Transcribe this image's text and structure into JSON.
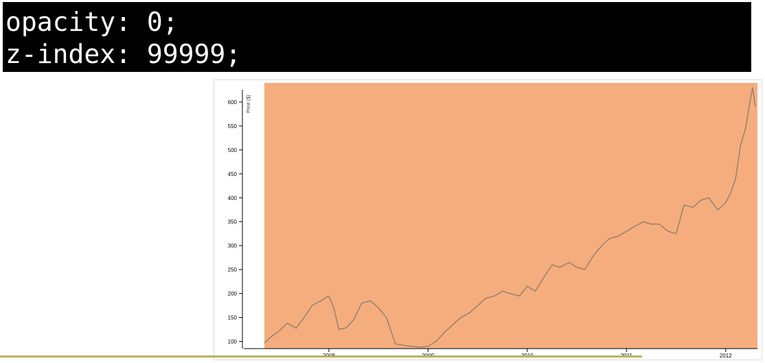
{
  "overlay": {
    "line1": "opacity: 0;",
    "line2": "z-index: 99999;"
  },
  "colors": {
    "banner_bg": "#000000",
    "banner_text": "#ffffff",
    "plot_bg": "#f5ad7e",
    "line": "#8a7a6a"
  },
  "chart_data": {
    "type": "line",
    "title": "",
    "xlabel": "",
    "ylabel": "Price ($)",
    "xlim": [
      2007.35,
      2012.32
    ],
    "ylim": [
      85,
      640
    ],
    "x_ticks": [
      "2008",
      "2009",
      "2010",
      "2011",
      "2012"
    ],
    "y_ticks": [
      100,
      150,
      200,
      250,
      300,
      350,
      400,
      450,
      500,
      550,
      600
    ],
    "grid": false,
    "series": [
      {
        "x": [
          2007.35,
          2007.42,
          2007.5,
          2007.58,
          2007.67,
          2007.75,
          2007.83,
          2007.92,
          2008.0,
          2008.05,
          2008.1,
          2008.17,
          2008.25,
          2008.33,
          2008.42,
          2008.5,
          2008.58,
          2008.67,
          2008.75,
          2008.83,
          2008.92,
          2009.0,
          2009.08,
          2009.17,
          2009.25,
          2009.33,
          2009.42,
          2009.5,
          2009.58,
          2009.67,
          2009.75,
          2009.83,
          2009.92,
          2010.0,
          2010.08,
          2010.17,
          2010.25,
          2010.33,
          2010.42,
          2010.5,
          2010.58,
          2010.67,
          2010.75,
          2010.83,
          2010.92,
          2011.0,
          2011.08,
          2011.17,
          2011.25,
          2011.33,
          2011.42,
          2011.5,
          2011.58,
          2011.67,
          2011.75,
          2011.83,
          2011.92,
          2012.0,
          2012.05,
          2012.1,
          2012.15,
          2012.2,
          2012.24,
          2012.27,
          2012.3
        ],
        "y": [
          97,
          110,
          122,
          138,
          128,
          150,
          175,
          185,
          195,
          170,
          125,
          128,
          145,
          180,
          185,
          170,
          150,
          95,
          92,
          90,
          88,
          90,
          100,
          120,
          135,
          150,
          160,
          175,
          190,
          195,
          205,
          200,
          195,
          215,
          205,
          235,
          260,
          255,
          265,
          255,
          250,
          280,
          300,
          315,
          320,
          330,
          340,
          350,
          345,
          345,
          330,
          325,
          385,
          380,
          395,
          400,
          375,
          390,
          410,
          440,
          510,
          545,
          595,
          630,
          590
        ]
      }
    ]
  }
}
